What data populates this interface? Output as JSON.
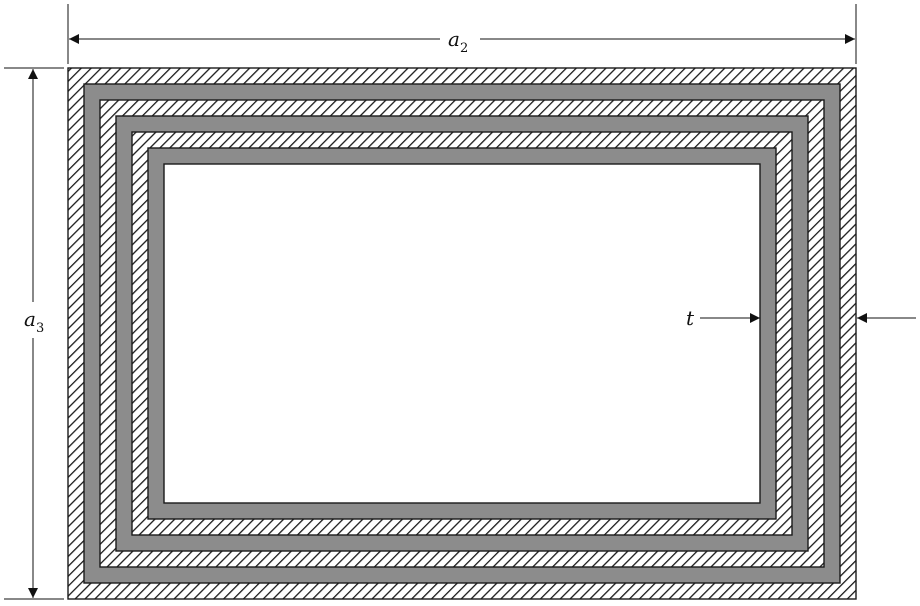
{
  "labels": {
    "width_dimension": "a",
    "width_subscript": "2",
    "height_dimension": "a",
    "height_subscript": "3",
    "thickness": "t"
  },
  "layers": [
    {
      "material": "hatched"
    },
    {
      "material": "gray"
    },
    {
      "material": "hatched"
    },
    {
      "material": "gray"
    },
    {
      "material": "hatched"
    },
    {
      "material": "gray"
    },
    {
      "material": "core"
    }
  ],
  "colors": {
    "line": "#1a1a1a",
    "gray_fill": "#8c8c8c",
    "hatch_background": "#ffffff",
    "core_fill": "#ffffff"
  }
}
